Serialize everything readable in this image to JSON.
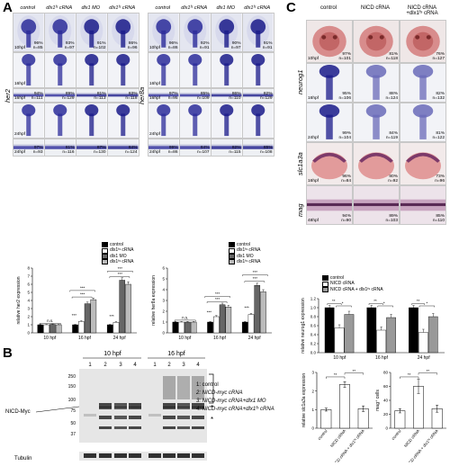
{
  "panels": {
    "a": "A",
    "b": "B",
    "c": "C"
  },
  "panel_a": {
    "her2_block": {
      "gene": "her2",
      "columns": [
        "control",
        "dlx1ᶠˢ cRNA",
        "dlx1 MO",
        "dlx1ᶠˢ cRNA"
      ],
      "rows": [
        {
          "stage": "10hpf",
          "cells": [
            {
              "pct": "96%",
              "n": "n=85"
            },
            {
              "pct": "93%",
              "n": "n=97"
            },
            {
              "pct": "91%",
              "n": "n=102"
            },
            {
              "pct": "86%",
              "n": "n=96"
            }
          ]
        },
        {
          "stage": "16hpf",
          "cells": [
            {
              "pct": "",
              "n": ""
            },
            {
              "pct": "",
              "n": ""
            },
            {
              "pct": "",
              "n": ""
            },
            {
              "pct": "",
              "n": ""
            }
          ]
        },
        {
          "stage": "16hpf",
          "cells": [
            {
              "pct": "94%",
              "n": "n=111"
            },
            {
              "pct": "89%",
              "n": "n=129"
            },
            {
              "pct": "81%",
              "n": "n=113"
            },
            {
              "pct": "83%",
              "n": "n=118"
            }
          ]
        },
        {
          "stage": "24hpf",
          "cells": [
            {
              "pct": "",
              "n": ""
            },
            {
              "pct": "",
              "n": ""
            },
            {
              "pct": "",
              "n": ""
            },
            {
              "pct": "",
              "n": ""
            }
          ]
        },
        {
          "stage": "24hpf",
          "cells": [
            {
              "pct": "97%",
              "n": "n=93"
            },
            {
              "pct": "81%",
              "n": "n=116"
            },
            {
              "pct": "87%",
              "n": "n=130"
            },
            {
              "pct": "84%",
              "n": "n=124"
            }
          ]
        }
      ]
    },
    "her8a_block": {
      "gene": "her8a",
      "columns": [
        "control",
        "dlx1ᶠˢ cRNA",
        "dlx1 MO",
        "dlx1ᶠˢ cRNA"
      ],
      "rows": [
        {
          "stage": "10hpf",
          "cells": [
            {
              "pct": "96%",
              "n": "n=86"
            },
            {
              "pct": "92%",
              "n": "n=91"
            },
            {
              "pct": "90%",
              "n": "n=97"
            },
            {
              "pct": "91%",
              "n": "n=91"
            }
          ]
        },
        {
          "stage": "16hpf",
          "cells": [
            {
              "pct": "",
              "n": ""
            },
            {
              "pct": "",
              "n": ""
            },
            {
              "pct": "",
              "n": ""
            },
            {
              "pct": "",
              "n": ""
            }
          ]
        },
        {
          "stage": "16hpf",
          "cells": [
            {
              "pct": "97%",
              "n": "n=95"
            },
            {
              "pct": "85%",
              "n": "n=109"
            },
            {
              "pct": "86%",
              "n": "n=110"
            },
            {
              "pct": "82%",
              "n": "n=129"
            }
          ]
        },
        {
          "stage": "24hpf",
          "cells": [
            {
              "pct": "",
              "n": ""
            },
            {
              "pct": "",
              "n": ""
            },
            {
              "pct": "",
              "n": ""
            },
            {
              "pct": "",
              "n": ""
            }
          ]
        },
        {
          "stage": "24hpf",
          "cells": [
            {
              "pct": "99%",
              "n": "n=86"
            },
            {
              "pct": "84%",
              "n": "n=107"
            },
            {
              "pct": "82%",
              "n": "n=115"
            },
            {
              "pct": "85%",
              "n": "n=108"
            }
          ]
        }
      ]
    },
    "legend": [
      "control",
      "dlx1ᶠˢ cRNA",
      "dlx1 MO",
      "dlx1ᶠˢ cRNA"
    ]
  },
  "panel_b": {
    "groups": [
      "10 hpf",
      "16 hpf"
    ],
    "lanes": [
      "1",
      "2",
      "3",
      "4",
      "1",
      "2",
      "3",
      "4"
    ],
    "markers": [
      "250",
      "150",
      "100",
      "75",
      "50",
      "37"
    ],
    "band_label": "NICD-Myc",
    "loading_label": "Tubulin",
    "key": [
      "1: control",
      "2: NICD-myc cRNA",
      "3: NICD-myc cRNA+dlx1 MO",
      "4: NICD-myc cRNA+dlx1ᶠˢ cRNA"
    ],
    "asterisks": [
      "*",
      "*"
    ]
  },
  "panel_c": {
    "columns": [
      "control",
      "NICD cRNA",
      "NICD cRNA\n+dlx1ᶠˢ cRNA"
    ],
    "rows": [
      {
        "gene": "",
        "stage": "10hpf",
        "cells": [
          {
            "pct": "97%",
            "n": "n=101"
          },
          {
            "pct": "81%",
            "n": "n=118"
          },
          {
            "pct": "76%",
            "n": "n=127"
          }
        ]
      },
      {
        "gene": "neurog1",
        "stage": "16hpf",
        "cells": [
          {
            "pct": "95%",
            "n": "n=106"
          },
          {
            "pct": "88%",
            "n": "n=124"
          },
          {
            "pct": "82%",
            "n": "n=132"
          }
        ]
      },
      {
        "gene": "",
        "stage": "24hpf",
        "cells": [
          {
            "pct": "99%",
            "n": "n=104"
          },
          {
            "pct": "84%",
            "n": "n=119"
          },
          {
            "pct": "81%",
            "n": "n=122"
          }
        ]
      },
      {
        "gene": "slc1a3a",
        "stage": "16hpf",
        "cells": [
          {
            "pct": "96%",
            "n": "n=84"
          },
          {
            "pct": "80%",
            "n": "n=92"
          },
          {
            "pct": "73%",
            "n": "n=96"
          }
        ]
      },
      {
        "gene": "mag",
        "stage": "48hpf",
        "cells": [
          {
            "pct": "94%",
            "n": "n=90"
          },
          {
            "pct": "89%",
            "n": "n=103"
          },
          {
            "pct": "85%",
            "n": "n=110"
          }
        ]
      }
    ],
    "legend": [
      "control",
      "NICD cRNA",
      "NICD cRNA + dlx1ᶠˢ cRNA"
    ]
  },
  "chart_data": [
    {
      "type": "bar",
      "id": "her2",
      "categories": [
        "10 hpf",
        "16 hpf",
        "24 hpf"
      ],
      "series": [
        {
          "name": "control",
          "values": [
            1.0,
            1.0,
            1.0
          ],
          "err": [
            0.05,
            0.05,
            0.05
          ]
        },
        {
          "name": "dlx1ᶠˢ cRNA",
          "values": [
            1.0,
            1.4,
            1.3
          ],
          "err": [
            0.05,
            0.1,
            0.1
          ]
        },
        {
          "name": "dlx1 MO",
          "values": [
            1.05,
            3.6,
            6.5
          ],
          "err": [
            0.05,
            0.2,
            0.3
          ]
        },
        {
          "name": "dlx1ᶠˢ cRNA",
          "values": [
            1.0,
            4.1,
            6.0
          ],
          "err": [
            0.05,
            0.2,
            0.3
          ]
        }
      ],
      "ylabel": "relative her2 expression",
      "ylim": [
        0,
        8
      ],
      "yticks": [
        "0",
        "1",
        "2",
        "3",
        "4",
        "5",
        "6",
        "7",
        "8"
      ],
      "sig": [
        "n.s.",
        "***",
        "***",
        "***",
        "***",
        "***",
        "***"
      ]
    },
    {
      "type": "bar",
      "id": "her8a",
      "categories": [
        "10 hpf",
        "16 hpf",
        "24 hpf"
      ],
      "series": [
        {
          "name": "control",
          "values": [
            1.0,
            1.0,
            1.0
          ],
          "err": [
            0.05,
            0.05,
            0.05
          ]
        },
        {
          "name": "dlx1ᶠˢ cRNA",
          "values": [
            1.0,
            1.5,
            1.7
          ],
          "err": [
            0.05,
            0.1,
            0.1
          ]
        },
        {
          "name": "dlx1 MO",
          "values": [
            1.0,
            2.6,
            4.4
          ],
          "err": [
            0.05,
            0.15,
            0.2
          ]
        },
        {
          "name": "dlx1ᶠˢ cRNA",
          "values": [
            1.0,
            2.4,
            3.8
          ],
          "err": [
            0.05,
            0.15,
            0.2
          ]
        }
      ],
      "ylabel": "relative her8a expression",
      "ylim": [
        0,
        6
      ],
      "yticks": [
        "0",
        "1",
        "2",
        "3",
        "4",
        "5",
        "6"
      ],
      "sig": [
        "n.s.",
        "***",
        "***",
        "***",
        "***",
        "***",
        "***"
      ]
    },
    {
      "type": "bar",
      "id": "neurog1",
      "categories": [
        "10 hpf",
        "16 hpf",
        "24 hpf"
      ],
      "series": [
        {
          "name": "control",
          "values": [
            1.0,
            1.0,
            1.0
          ],
          "err": [
            0.05,
            0.05,
            0.05
          ]
        },
        {
          "name": "NICD cRNA",
          "values": [
            0.55,
            0.5,
            0.45
          ],
          "err": [
            0.07,
            0.07,
            0.07
          ]
        },
        {
          "name": "NICD cRNA + dlx1ᶠˢ cRNA",
          "values": [
            0.85,
            0.78,
            0.8
          ],
          "err": [
            0.07,
            0.07,
            0.07
          ]
        }
      ],
      "ylabel": "relative neurog1 expression",
      "ylim": [
        0,
        1.2
      ],
      "yticks": [
        "0.0",
        "0.2",
        "0.4",
        "0.6",
        "0.8",
        "1.0",
        "1.2"
      ],
      "sig": [
        "**",
        "*",
        "**",
        "*",
        "**",
        "*"
      ]
    },
    {
      "type": "bar",
      "id": "slc1a3a",
      "categories": [
        "control",
        "NICD cRNA",
        "NICD cRNA + dlx1ᶠˢ cRNA"
      ],
      "values": [
        1.0,
        2.35,
        1.05
      ],
      "err": [
        0.08,
        0.15,
        0.15
      ],
      "ylabel": "relative slc1a3a expression",
      "ylim": [
        0,
        3
      ],
      "yticks": [
        "0",
        "1",
        "2",
        "3"
      ],
      "sig": [
        "**",
        "**"
      ]
    },
    {
      "type": "bar",
      "id": "mag",
      "categories": [
        "control",
        "NICD cRNA",
        "NICD cRNA + dlx1ᶠˢ cRNA"
      ],
      "values": [
        25,
        60,
        28
      ],
      "err": [
        3,
        10,
        5
      ],
      "ylabel": "mag⁺ cells",
      "ylim": [
        0,
        80
      ],
      "yticks": [
        "0",
        "20",
        "40",
        "60",
        "80"
      ],
      "sig": [
        "**",
        "**"
      ]
    }
  ]
}
